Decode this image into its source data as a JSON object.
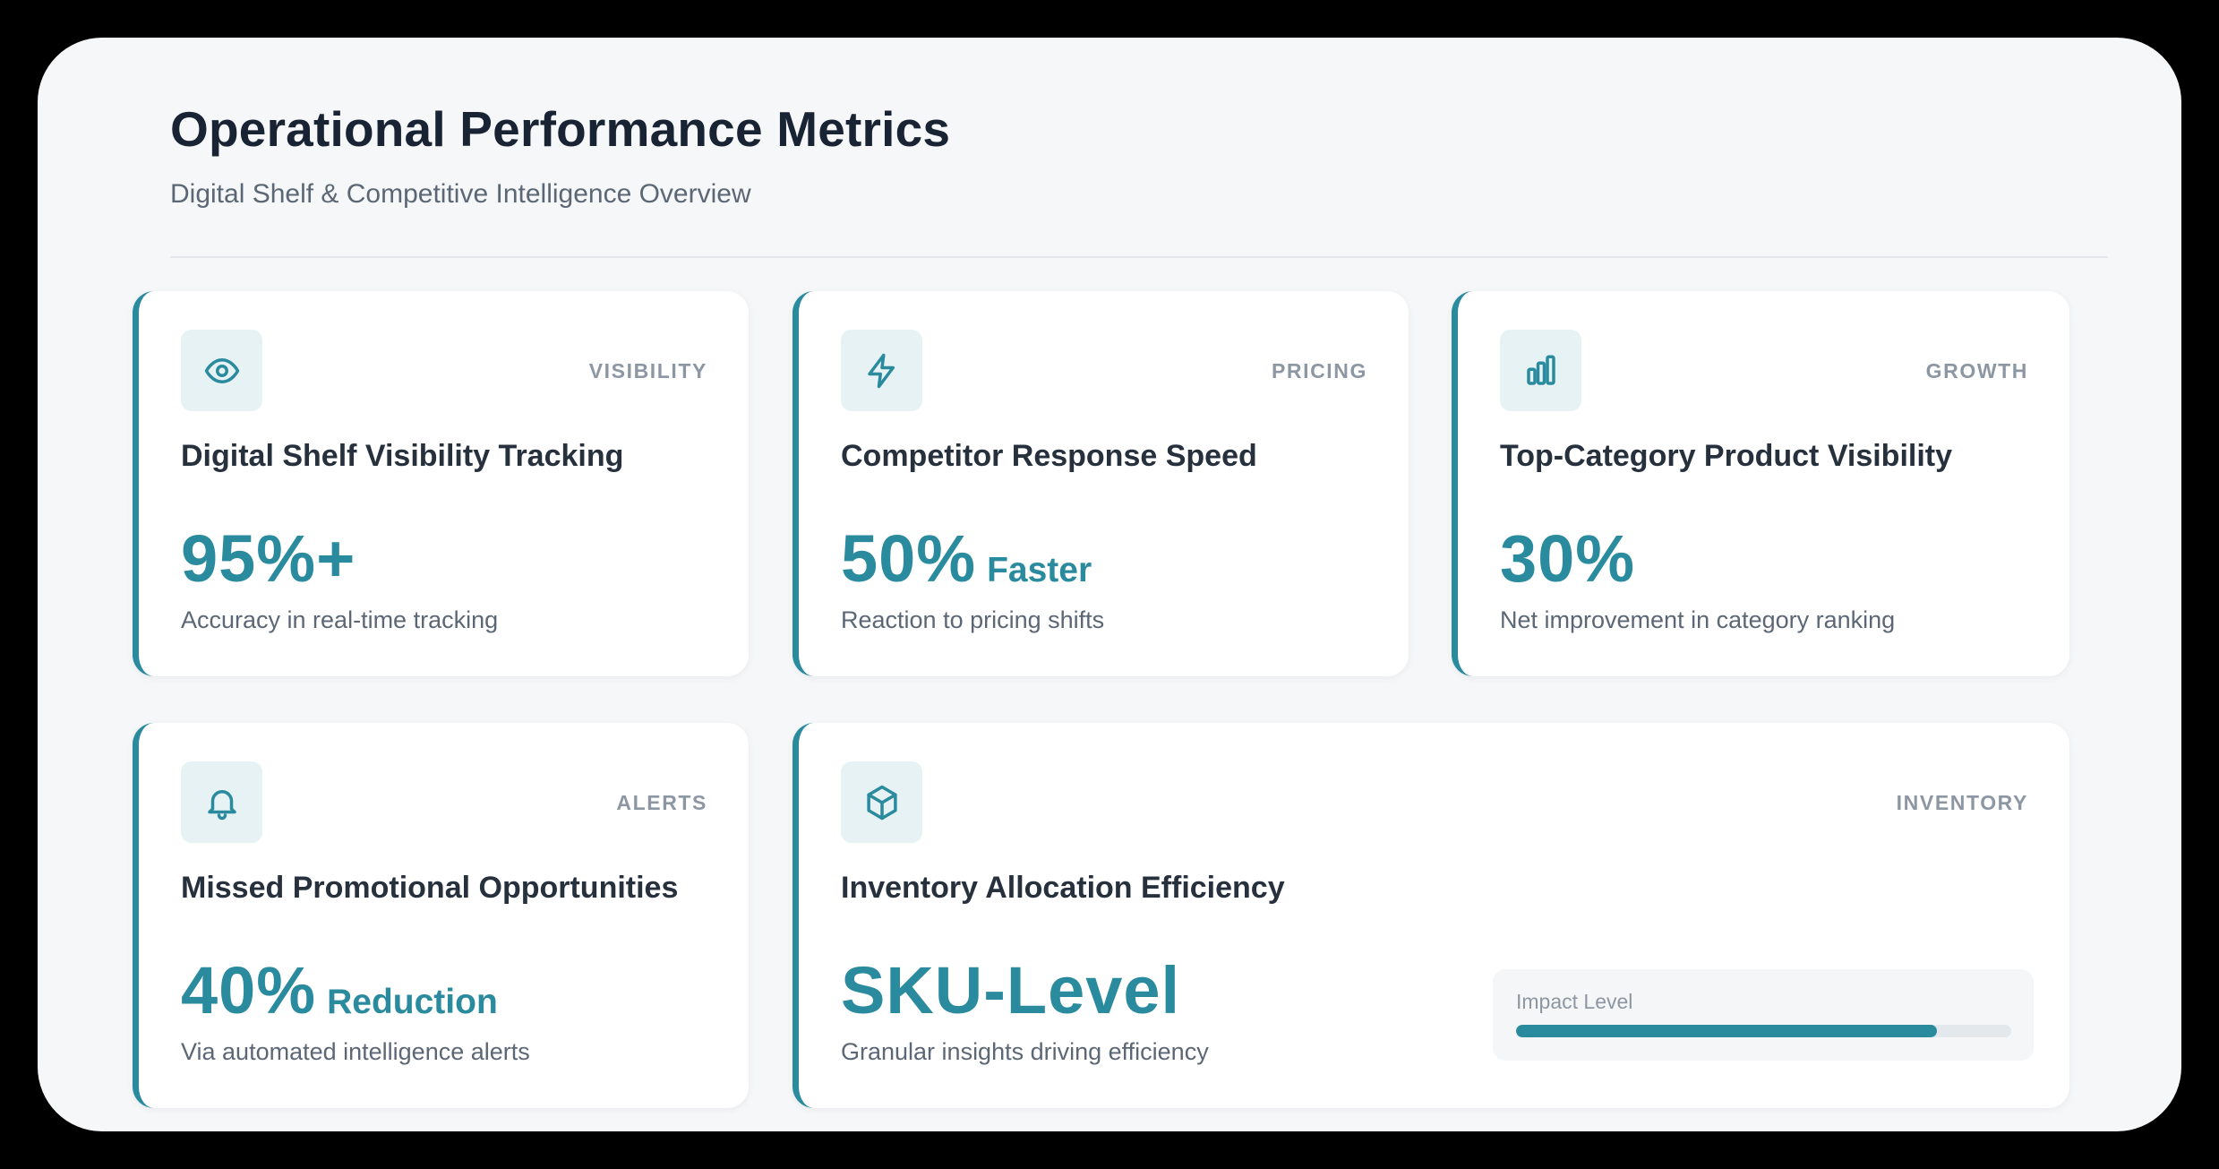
{
  "header": {
    "title": "Operational Performance Metrics",
    "subtitle": "Digital Shelf & Competitive Intelligence Overview"
  },
  "cards": [
    {
      "icon": "eye-icon",
      "tag": "VISIBILITY",
      "title": "Digital Shelf Visibility Tracking",
      "value": "95%+",
      "suffix": "",
      "description": "Accuracy in real-time tracking"
    },
    {
      "icon": "lightning-icon",
      "tag": "PRICING",
      "title": "Competitor Response Speed",
      "value": "50%",
      "suffix": "Faster",
      "description": "Reaction to pricing shifts"
    },
    {
      "icon": "bar-chart-icon",
      "tag": "GROWTH",
      "title": "Top-Category Product Visibility",
      "value": "30%",
      "suffix": "",
      "description": "Net improvement in category ranking"
    },
    {
      "icon": "bell-icon",
      "tag": "ALERTS",
      "title": "Missed Promotional Opportunities",
      "value": "40%",
      "suffix": "Reduction",
      "description": "Via automated intelligence alerts"
    },
    {
      "icon": "cube-icon",
      "tag": "INVENTORY",
      "title": "Inventory Allocation Efficiency",
      "value": "SKU-Level",
      "suffix": "",
      "description": "Granular insights driving efficiency"
    }
  ],
  "impact": {
    "label": "Impact Level",
    "level": 0.85
  },
  "colors": {
    "accent": "#2a8a9e",
    "icon_bg": "#e6f2f4",
    "heading": "#182334",
    "muted": "#5c6776"
  }
}
